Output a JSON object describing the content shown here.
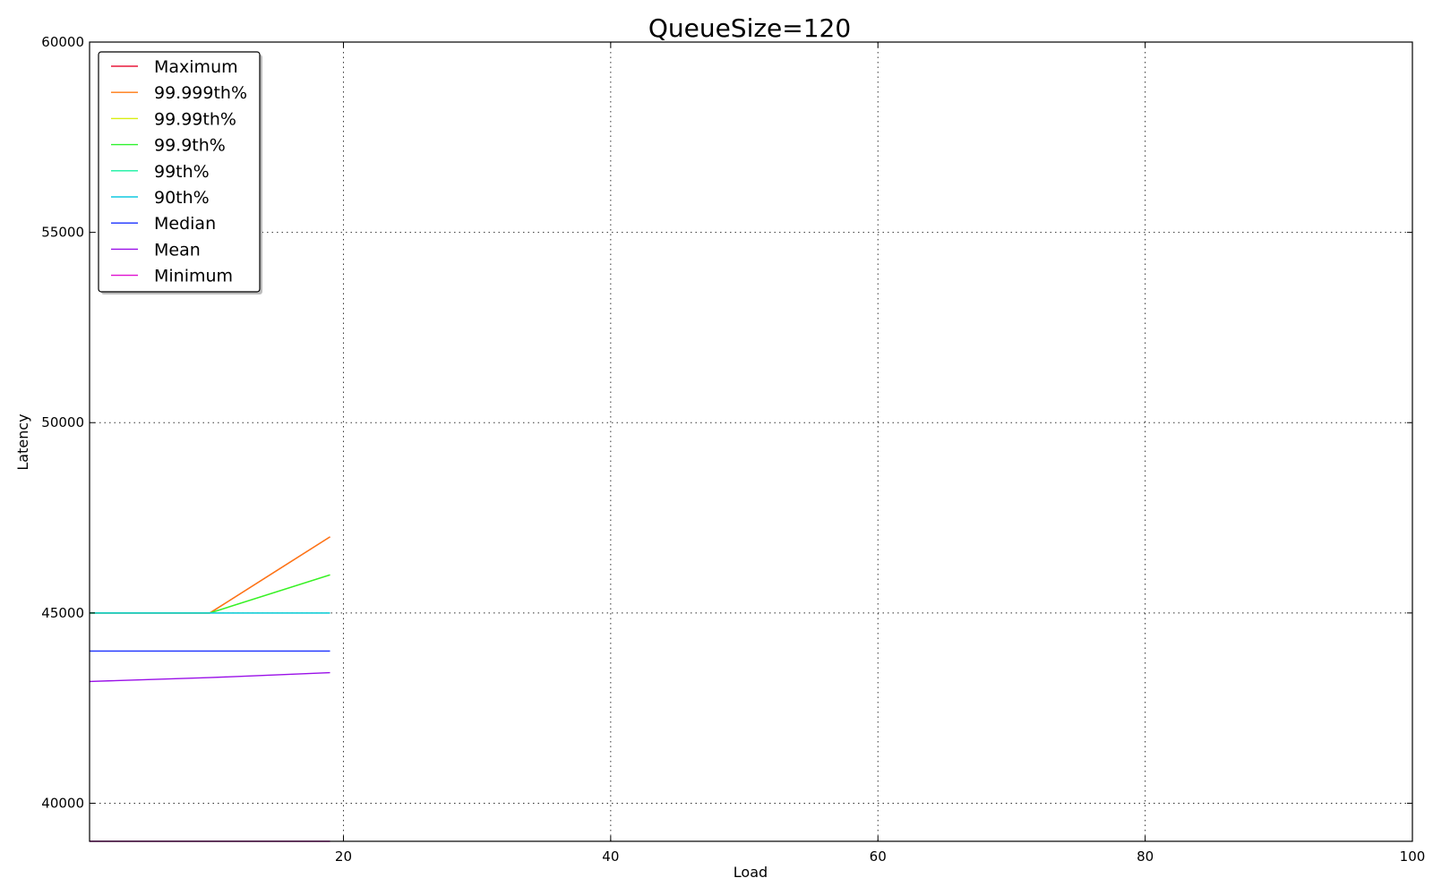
{
  "chart_data": {
    "type": "line",
    "title": "QueueSize=120",
    "xlabel": "Load",
    "ylabel": "Latency",
    "xlim": [
      1,
      100
    ],
    "ylim": [
      39000,
      60000
    ],
    "xticks": [
      20,
      40,
      60,
      80,
      100
    ],
    "yticks": [
      40000,
      45000,
      50000,
      55000,
      60000
    ],
    "grid": true,
    "legend_position": "top-left",
    "x": [
      1,
      10,
      19
    ],
    "series": [
      {
        "name": "Maximum",
        "color": "#e8193c",
        "values": [
          45000,
          45000,
          47000
        ]
      },
      {
        "name": "99.999th%",
        "color": "#ff7a10",
        "values": [
          45000,
          45000,
          47000
        ]
      },
      {
        "name": "99.99th%",
        "color": "#d8ee10",
        "values": [
          45000,
          45000,
          46000
        ]
      },
      {
        "name": "99.9th%",
        "color": "#2ef22e",
        "values": [
          45000,
          45000,
          46000
        ]
      },
      {
        "name": "99th%",
        "color": "#14f0a0",
        "values": [
          45000,
          45000,
          45000
        ]
      },
      {
        "name": "90th%",
        "color": "#10c8e0",
        "values": [
          45000,
          45000,
          45000
        ]
      },
      {
        "name": "Median",
        "color": "#1a30ff",
        "values": [
          44000,
          44000,
          44000
        ]
      },
      {
        "name": "Mean",
        "color": "#9a10e8",
        "values": [
          43200,
          43300,
          43430
        ]
      },
      {
        "name": "Minimum",
        "color": "#e010d0",
        "values": [
          39000,
          39000,
          39000
        ]
      }
    ]
  }
}
